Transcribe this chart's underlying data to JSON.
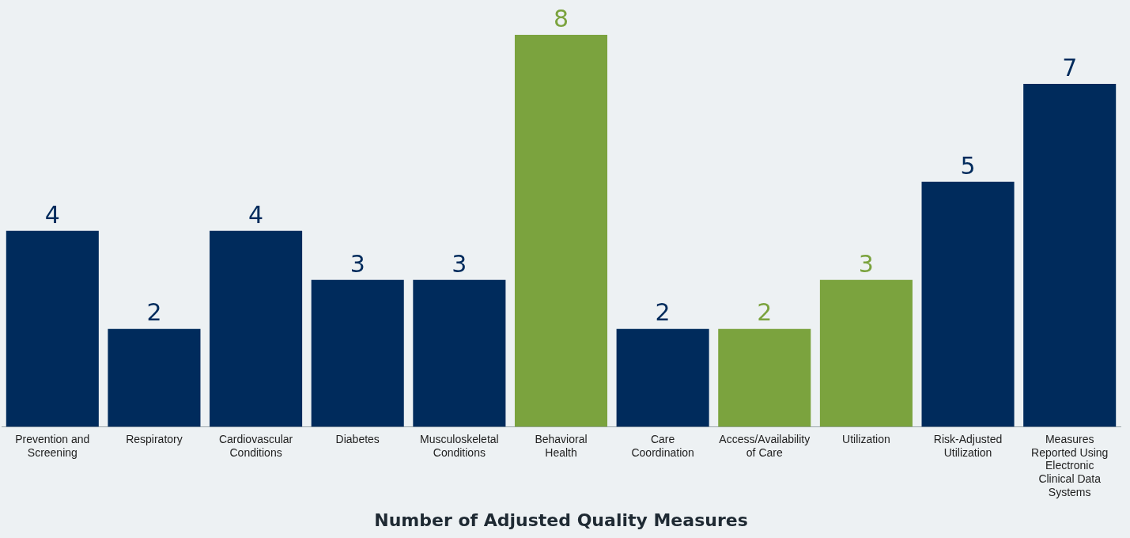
{
  "chart_data": {
    "type": "bar",
    "xlabel": "Number of Adjusted Quality Measures",
    "categories": [
      "Prevention and Screening",
      "Respiratory",
      "Cardiovascular Conditions",
      "Diabetes",
      "Musculoskeletal Conditions",
      "Behavioral Health",
      "Care Coordination",
      "Access/Availability of Care",
      "Utilization",
      "Risk-Adjusted Utilization",
      "Measures Reported Using Electronic Clinical Data Systems"
    ],
    "values": [
      4,
      2,
      4,
      3,
      3,
      8,
      2,
      2,
      3,
      5,
      7
    ],
    "colors": [
      "#002b5c",
      "#002b5c",
      "#002b5c",
      "#002b5c",
      "#002b5c",
      "#7ba33e",
      "#002b5c",
      "#7ba33e",
      "#7ba33e",
      "#002b5c",
      "#002b5c"
    ],
    "data_labels": true,
    "grid": false,
    "legend": false,
    "tick_labels": "x"
  }
}
